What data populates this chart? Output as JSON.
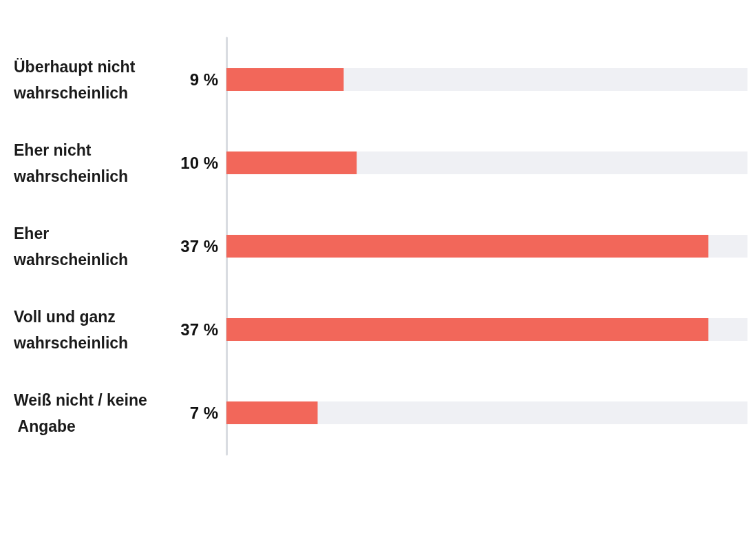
{
  "chart_data": {
    "type": "bar",
    "orientation": "horizontal",
    "categories": [
      "Überhaupt nicht wahrscheinlich",
      "Eher nicht wahrscheinlich",
      "Eher wahrscheinlich",
      "Voll und ganz wahrscheinlich",
      "Weiß nicht / keine Angabe"
    ],
    "values": [
      9,
      10,
      37,
      37,
      7
    ],
    "value_labels": [
      "9 %",
      "10 %",
      "37 %",
      "37 %",
      "7 %"
    ],
    "color": "#f2675a",
    "tick_labels": "y",
    "grid": false
  }
}
